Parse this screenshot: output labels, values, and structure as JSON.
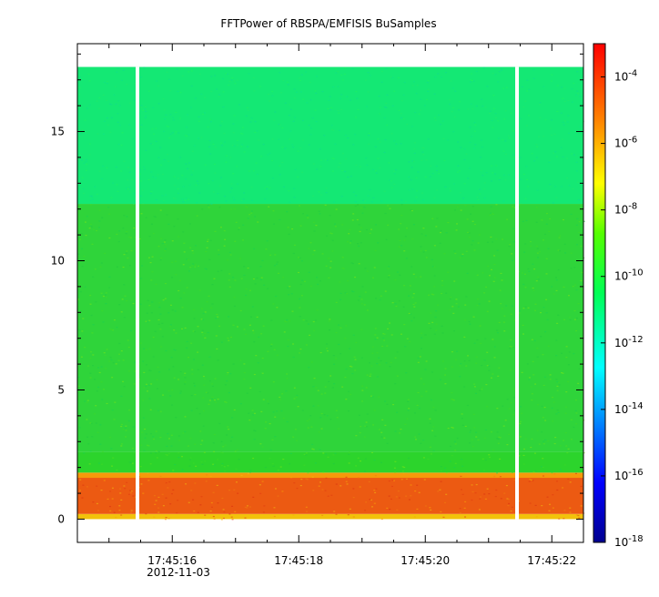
{
  "chart_data": {
    "type": "heatmap",
    "title": "FFTPower of RBSPA/EMFISIS  BuSamples",
    "xlabel": "",
    "ylabel": "",
    "x_date_label": "2012-11-03",
    "xlim_seconds": [
      14.5,
      22.5
    ],
    "x_major_ticks": [
      {
        "t": 16,
        "label": "17:45:16"
      },
      {
        "t": 18,
        "label": "17:45:18"
      },
      {
        "t": 20,
        "label": "17:45:20"
      },
      {
        "t": 22,
        "label": "17:45:22"
      }
    ],
    "ylim": [
      -0.9,
      18.4
    ],
    "y_ticks": [
      0,
      5,
      10,
      15
    ],
    "colorbar": {
      "scale": "log",
      "range": [
        1e-18,
        0.001
      ],
      "ticks": [
        {
          "exp": -4,
          "base": "10",
          "sup": "-4"
        },
        {
          "exp": -6,
          "base": "10",
          "sup": "-6"
        },
        {
          "exp": -8,
          "base": "10",
          "sup": "-8"
        },
        {
          "exp": -10,
          "base": "10",
          "sup": "-10"
        },
        {
          "exp": -12,
          "base": "10",
          "sup": "-12"
        },
        {
          "exp": -14,
          "base": "10",
          "sup": "-14"
        },
        {
          "exp": -16,
          "base": "10",
          "sup": "-16"
        },
        {
          "exp": -18,
          "base": "10",
          "sup": "-18"
        }
      ]
    },
    "data_extent": {
      "x_seconds": [
        14.5,
        22.5
      ],
      "y": [
        0,
        17.5
      ]
    },
    "gaps_seconds": [
      15.45,
      21.45
    ],
    "bands": [
      {
        "y": [
          0.0,
          0.2
        ],
        "color": "#f2c20b"
      },
      {
        "y": [
          0.2,
          1.6
        ],
        "color": "#ec5a12"
      },
      {
        "y": [
          1.6,
          1.8
        ],
        "color": "#f59a0a"
      },
      {
        "y": [
          1.8,
          2.6
        ],
        "color": "#2cd42c"
      },
      {
        "y": [
          2.6,
          12.2
        ],
        "color": "#2fd43a"
      },
      {
        "y": [
          12.2,
          17.5
        ],
        "color": "#14e874"
      }
    ]
  }
}
